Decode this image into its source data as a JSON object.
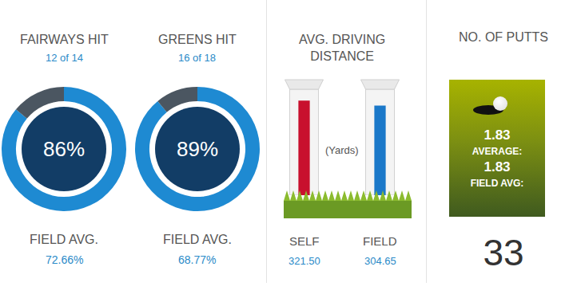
{
  "chart_data": [
    {
      "type": "pie",
      "title": "FAIRWAYS HIT",
      "subtitle": "12 of 14",
      "values": [
        86,
        14
      ],
      "value_labels": [
        "86%",
        null
      ],
      "colors": [
        "#1e8ad2",
        "#4b5661"
      ],
      "annotations": [
        "FIELD AVG.",
        "72.66%"
      ]
    },
    {
      "type": "pie",
      "title": "GREENS HIT",
      "subtitle": "16 of 18",
      "values": [
        89,
        11
      ],
      "value_labels": [
        "89%",
        null
      ],
      "colors": [
        "#1e8ad2",
        "#4b5661"
      ],
      "annotations": [
        "FIELD AVG.",
        "68.77%"
      ]
    },
    {
      "type": "bar",
      "title": "AVG. DRIVING\nDISTANCE",
      "categories": [
        "SELF",
        "FIELD"
      ],
      "values": [
        321.5,
        304.65
      ],
      "value_labels": [
        "321.50",
        "304.65"
      ],
      "colors": [
        "#c8102e",
        "#1a78c9"
      ],
      "ylim": [
        0,
        360
      ],
      "tick_labels": false,
      "annotations": [
        "(Yards)"
      ]
    },
    {
      "type": "stat",
      "title": "NO. OF PUTTS",
      "lines": [
        "1.83",
        "AVERAGE:",
        "1.83",
        "FIELD AVG:"
      ],
      "value": 33
    }
  ]
}
